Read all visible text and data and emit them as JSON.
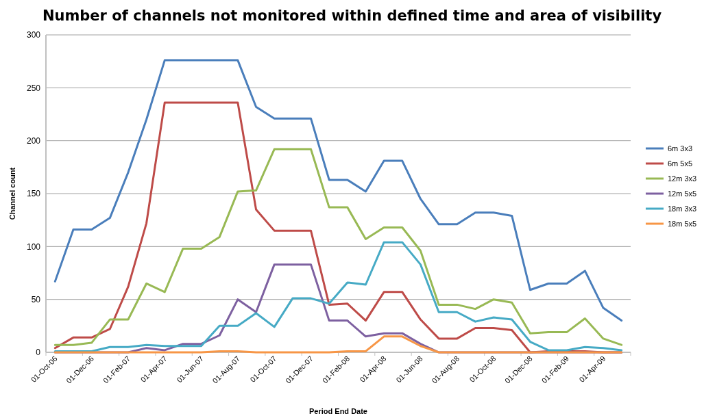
{
  "chart_data": {
    "type": "line",
    "title": "Number of channels not monitored within defined time and area of visibility",
    "xlabel": "Period End Date",
    "ylabel": "Channel count",
    "categories": [
      "01-Oct-06",
      null,
      "01-Dec-06",
      null,
      "01-Feb-07",
      null,
      "01-Apr-07",
      null,
      "01-Jun-07",
      null,
      "01-Aug-07",
      null,
      "01-Oct-07",
      null,
      "01-Dec-07",
      null,
      "01-Feb-08",
      null,
      "01-Apr-08",
      null,
      "01-Jun-08",
      null,
      "01-Aug-08",
      null,
      "01-Oct-08",
      null,
      "01-Dec-08",
      null,
      "01-Feb-09",
      null,
      "01-Apr-09",
      null
    ],
    "series": [
      {
        "name": "6m 3x3",
        "color": "#4a7ebb",
        "values": [
          67,
          116,
          116,
          127,
          170,
          220,
          276,
          276,
          276,
          276,
          276,
          232,
          221,
          221,
          221,
          163,
          163,
          152,
          181,
          181,
          145,
          121,
          121,
          132,
          132,
          129,
          59,
          65,
          65,
          77,
          42,
          30
        ]
      },
      {
        "name": "6m 5x5",
        "color": "#be4b48",
        "values": [
          4,
          14,
          14,
          22,
          62,
          122,
          236,
          236,
          236,
          236,
          236,
          135,
          115,
          115,
          115,
          45,
          46,
          30,
          57,
          57,
          31,
          13,
          13,
          23,
          23,
          21,
          0,
          1,
          1,
          1,
          0,
          0
        ]
      },
      {
        "name": "12m 3x3",
        "color": "#98b954",
        "values": [
          7,
          7,
          9,
          31,
          31,
          65,
          57,
          98,
          98,
          109,
          152,
          153,
          192,
          192,
          192,
          137,
          137,
          107,
          118,
          118,
          96,
          45,
          45,
          41,
          50,
          47,
          18,
          19,
          19,
          32,
          13,
          7
        ]
      },
      {
        "name": "12m 5x5",
        "color": "#7d60a0",
        "values": [
          0,
          0,
          0,
          0,
          0,
          4,
          2,
          8,
          8,
          16,
          50,
          38,
          83,
          83,
          83,
          30,
          30,
          15,
          18,
          18,
          8,
          0,
          0,
          0,
          0,
          0,
          0,
          0,
          0,
          0,
          0,
          0
        ]
      },
      {
        "name": "18m 3x3",
        "color": "#46aac5",
        "values": [
          1,
          1,
          1,
          5,
          5,
          7,
          6,
          6,
          6,
          25,
          25,
          37,
          24,
          51,
          51,
          46,
          66,
          64,
          104,
          104,
          83,
          38,
          38,
          29,
          33,
          31,
          10,
          2,
          2,
          5,
          4,
          2
        ]
      },
      {
        "name": "18m 5x5",
        "color": "#f79646",
        "values": [
          0,
          0,
          0,
          0,
          0,
          0,
          0,
          0,
          0,
          1,
          1,
          0,
          0,
          0,
          0,
          0,
          1,
          1,
          15,
          15,
          6,
          0,
          0,
          0,
          0,
          0,
          0,
          0,
          0,
          0,
          0,
          0
        ]
      }
    ],
    "ylim": [
      0,
      300
    ],
    "yticks": [
      0,
      50,
      100,
      150,
      200,
      250,
      300
    ],
    "grid": "y",
    "legend": "right",
    "marker": "none",
    "line_style": "solid"
  }
}
